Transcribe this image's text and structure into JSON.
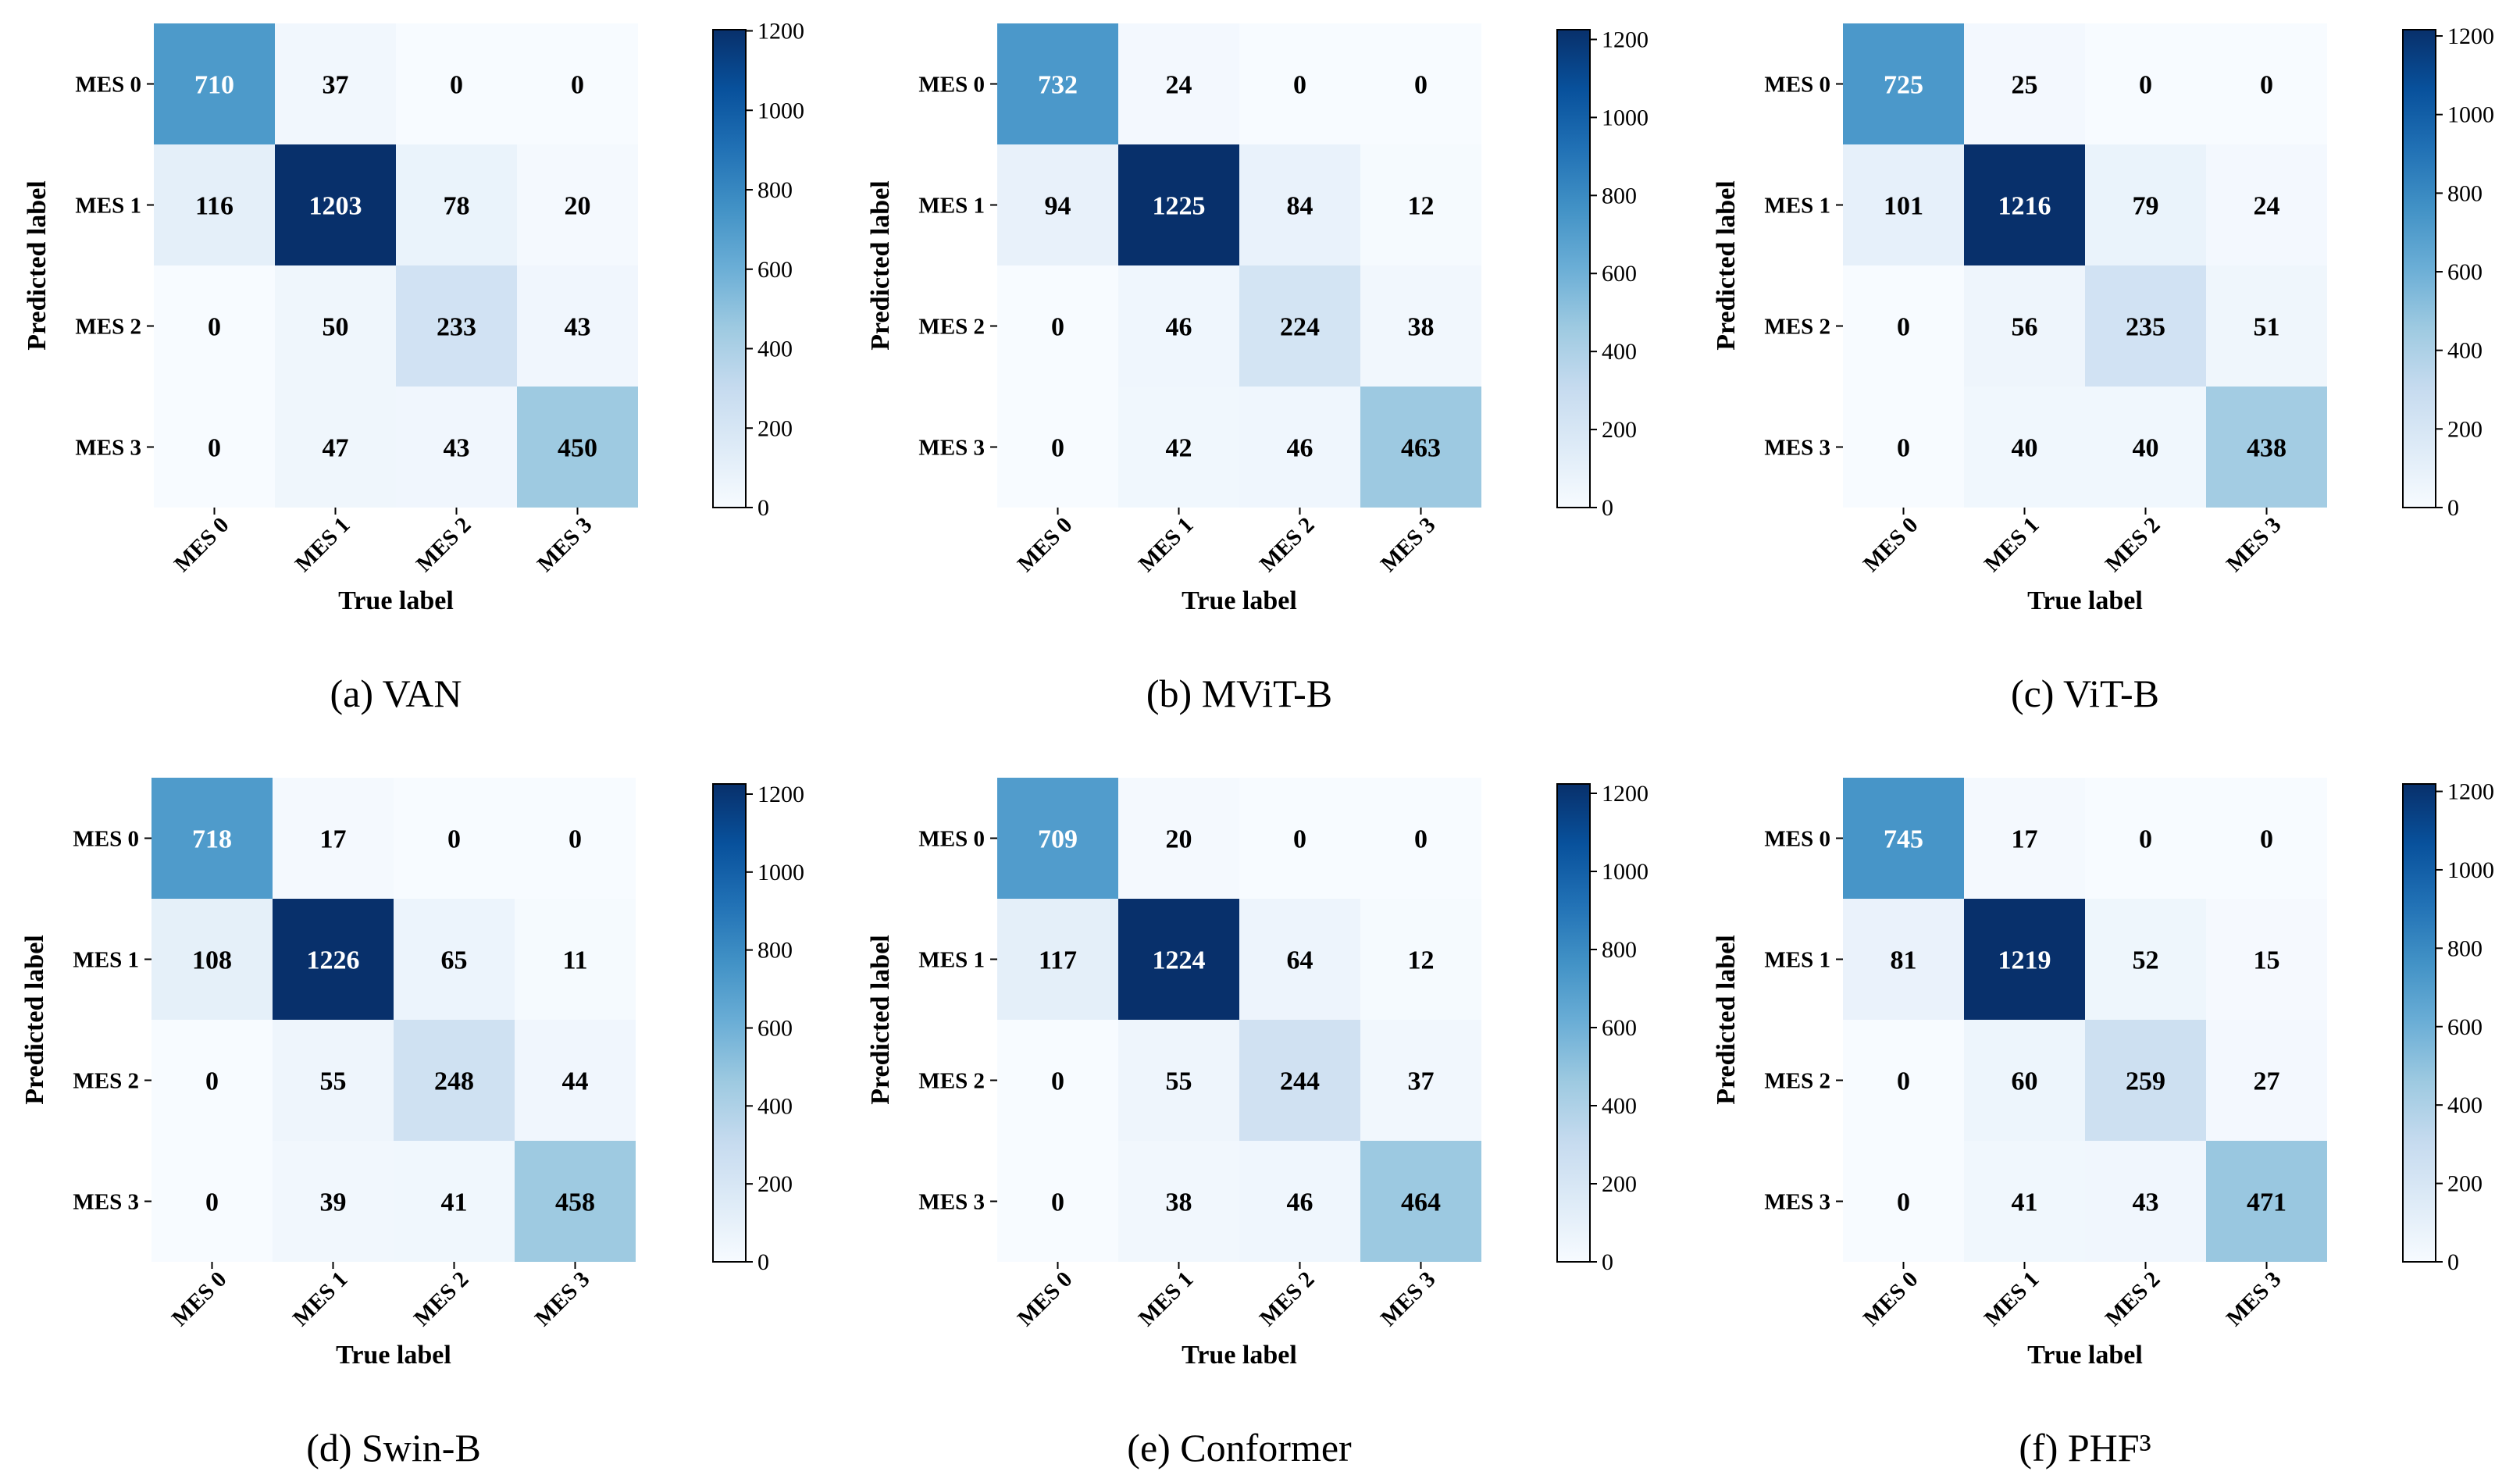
{
  "colormap": {
    "name": "Blues",
    "stops": [
      "#f7fbff",
      "#deebf7",
      "#c6dbef",
      "#9ecae1",
      "#6baed6",
      "#4292c6",
      "#2171b5",
      "#08519c",
      "#08306b"
    ],
    "vmin": 0,
    "vmax": 1226
  },
  "chart_data": [
    {
      "type": "heatmap",
      "caption": "(a) VAN",
      "xlabel": "True label",
      "ylabel": "Predicted label",
      "x_categories": [
        "MES 0",
        "MES 1",
        "MES 2",
        "MES 3"
      ],
      "y_categories": [
        "MES 0",
        "MES 1",
        "MES 2",
        "MES 3"
      ],
      "values": [
        [
          710,
          37,
          0,
          0
        ],
        [
          116,
          1203,
          78,
          20
        ],
        [
          0,
          50,
          233,
          43
        ],
        [
          0,
          47,
          43,
          450
        ]
      ],
      "colorbar_ticks": [
        0,
        200,
        400,
        600,
        800,
        1000,
        1200
      ],
      "colorbar_range": [
        0,
        1203
      ]
    },
    {
      "type": "heatmap",
      "caption": "(b) MViT-B",
      "xlabel": "True label",
      "ylabel": "Predicted label",
      "x_categories": [
        "MES 0",
        "MES 1",
        "MES 2",
        "MES 3"
      ],
      "y_categories": [
        "MES 0",
        "MES 1",
        "MES 2",
        "MES 3"
      ],
      "values": [
        [
          732,
          24,
          0,
          0
        ],
        [
          94,
          1225,
          84,
          12
        ],
        [
          0,
          46,
          224,
          38
        ],
        [
          0,
          42,
          46,
          463
        ]
      ],
      "colorbar_ticks": [
        0,
        200,
        400,
        600,
        800,
        1000,
        1200
      ],
      "colorbar_range": [
        0,
        1225
      ]
    },
    {
      "type": "heatmap",
      "caption": "(c) ViT-B",
      "xlabel": "True label",
      "ylabel": "Predicted label",
      "x_categories": [
        "MES 0",
        "MES 1",
        "MES 2",
        "MES 3"
      ],
      "y_categories": [
        "MES 0",
        "MES 1",
        "MES 2",
        "MES 3"
      ],
      "values": [
        [
          725,
          25,
          0,
          0
        ],
        [
          101,
          1216,
          79,
          24
        ],
        [
          0,
          56,
          235,
          51
        ],
        [
          0,
          40,
          40,
          438
        ]
      ],
      "colorbar_ticks": [
        0,
        200,
        400,
        600,
        800,
        1000,
        1200
      ],
      "colorbar_range": [
        0,
        1216
      ]
    },
    {
      "type": "heatmap",
      "caption": "(d) Swin-B",
      "xlabel": "True label",
      "ylabel": "Predicted label",
      "x_categories": [
        "MES 0",
        "MES 1",
        "MES 2",
        "MES 3"
      ],
      "y_categories": [
        "MES 0",
        "MES 1",
        "MES 2",
        "MES 3"
      ],
      "values": [
        [
          718,
          17,
          0,
          0
        ],
        [
          108,
          1226,
          65,
          11
        ],
        [
          0,
          55,
          248,
          44
        ],
        [
          0,
          39,
          41,
          458
        ]
      ],
      "colorbar_ticks": [
        0,
        200,
        400,
        600,
        800,
        1000,
        1200
      ],
      "colorbar_range": [
        0,
        1226
      ]
    },
    {
      "type": "heatmap",
      "caption": "(e) Conformer",
      "xlabel": "True label",
      "ylabel": "Predicted label",
      "x_categories": [
        "MES 0",
        "MES 1",
        "MES 2",
        "MES 3"
      ],
      "y_categories": [
        "MES 0",
        "MES 1",
        "MES 2",
        "MES 3"
      ],
      "values": [
        [
          709,
          20,
          0,
          0
        ],
        [
          117,
          1224,
          64,
          12
        ],
        [
          0,
          55,
          244,
          37
        ],
        [
          0,
          38,
          46,
          464
        ]
      ],
      "colorbar_ticks": [
        0,
        200,
        400,
        600,
        800,
        1000,
        1200
      ],
      "colorbar_range": [
        0,
        1224
      ]
    },
    {
      "type": "heatmap",
      "caption": "(f) PHF³",
      "xlabel": "True label",
      "ylabel": "Predicted label",
      "x_categories": [
        "MES 0",
        "MES 1",
        "MES 2",
        "MES 3"
      ],
      "y_categories": [
        "MES 0",
        "MES 1",
        "MES 2",
        "MES 3"
      ],
      "values": [
        [
          745,
          17,
          0,
          0
        ],
        [
          81,
          1219,
          52,
          15
        ],
        [
          0,
          60,
          259,
          27
        ],
        [
          0,
          41,
          43,
          471
        ]
      ],
      "colorbar_ticks": [
        0,
        200,
        400,
        600,
        800,
        1000,
        1200
      ],
      "colorbar_range": [
        0,
        1219
      ]
    }
  ]
}
